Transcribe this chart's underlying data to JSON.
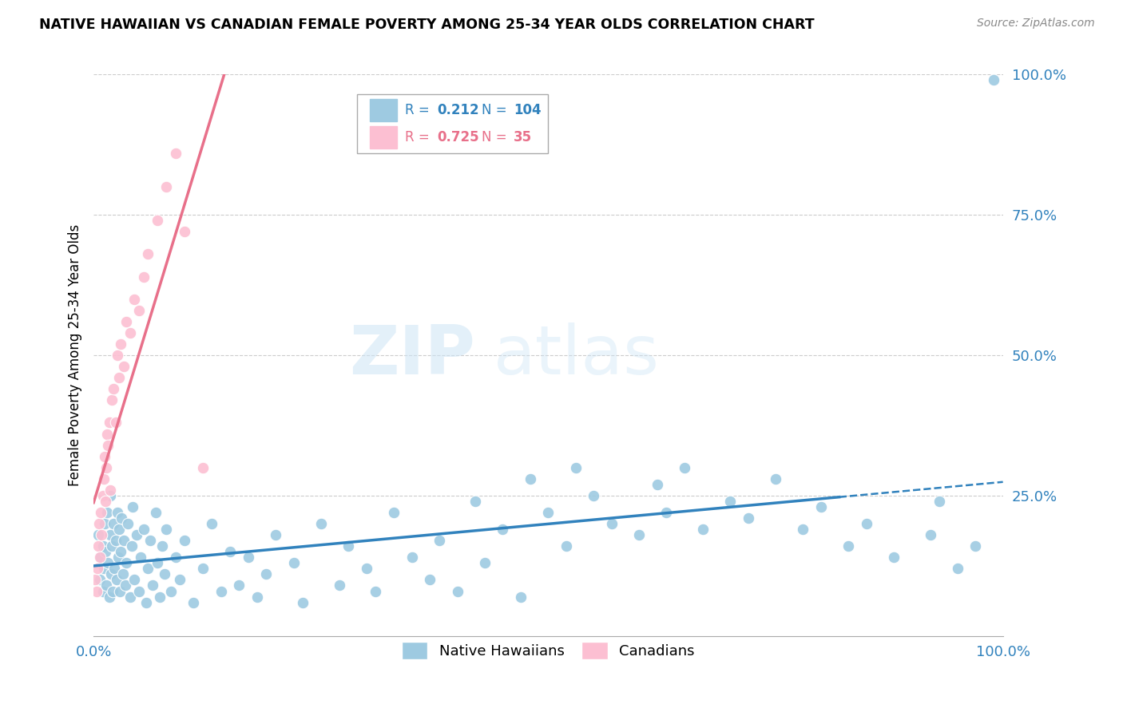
{
  "title": "NATIVE HAWAIIAN VS CANADIAN FEMALE POVERTY AMONG 25-34 YEAR OLDS CORRELATION CHART",
  "source": "Source: ZipAtlas.com",
  "ylabel": "Female Poverty Among 25-34 Year Olds",
  "blue_R": 0.212,
  "blue_N": 104,
  "pink_R": 0.725,
  "pink_N": 35,
  "blue_color": "#9ecae1",
  "pink_color": "#fcbfd2",
  "blue_line_color": "#3182bd",
  "pink_line_color": "#e8708a",
  "text_color_blue": "#3182bd",
  "text_color_pink": "#e8708a",
  "watermark_zip": "ZIP",
  "watermark_atlas": "atlas",
  "legend_label_blue": "Native Hawaiians",
  "legend_label_pink": "Canadians",
  "blue_x": [
    0.005,
    0.007,
    0.008,
    0.01,
    0.01,
    0.011,
    0.012,
    0.013,
    0.014,
    0.015,
    0.016,
    0.017,
    0.018,
    0.018,
    0.019,
    0.02,
    0.021,
    0.022,
    0.023,
    0.024,
    0.025,
    0.026,
    0.027,
    0.028,
    0.029,
    0.03,
    0.031,
    0.032,
    0.033,
    0.035,
    0.036,
    0.038,
    0.04,
    0.042,
    0.043,
    0.045,
    0.047,
    0.05,
    0.052,
    0.055,
    0.058,
    0.06,
    0.062,
    0.065,
    0.068,
    0.07,
    0.073,
    0.075,
    0.078,
    0.08,
    0.085,
    0.09,
    0.095,
    0.1,
    0.11,
    0.12,
    0.13,
    0.14,
    0.15,
    0.16,
    0.17,
    0.18,
    0.19,
    0.2,
    0.22,
    0.23,
    0.25,
    0.27,
    0.28,
    0.3,
    0.31,
    0.33,
    0.35,
    0.37,
    0.38,
    0.4,
    0.42,
    0.43,
    0.45,
    0.47,
    0.48,
    0.5,
    0.52,
    0.53,
    0.55,
    0.57,
    0.6,
    0.62,
    0.63,
    0.65,
    0.67,
    0.7,
    0.72,
    0.75,
    0.78,
    0.8,
    0.83,
    0.85,
    0.88,
    0.92,
    0.93,
    0.95,
    0.97,
    0.99
  ],
  "blue_y": [
    0.18,
    0.1,
    0.14,
    0.08,
    0.16,
    0.12,
    0.2,
    0.15,
    0.09,
    0.22,
    0.13,
    0.07,
    0.18,
    0.25,
    0.11,
    0.16,
    0.08,
    0.2,
    0.12,
    0.17,
    0.1,
    0.22,
    0.14,
    0.19,
    0.08,
    0.15,
    0.21,
    0.11,
    0.17,
    0.09,
    0.13,
    0.2,
    0.07,
    0.16,
    0.23,
    0.1,
    0.18,
    0.08,
    0.14,
    0.19,
    0.06,
    0.12,
    0.17,
    0.09,
    0.22,
    0.13,
    0.07,
    0.16,
    0.11,
    0.19,
    0.08,
    0.14,
    0.1,
    0.17,
    0.06,
    0.12,
    0.2,
    0.08,
    0.15,
    0.09,
    0.14,
    0.07,
    0.11,
    0.18,
    0.13,
    0.06,
    0.2,
    0.09,
    0.16,
    0.12,
    0.08,
    0.22,
    0.14,
    0.1,
    0.17,
    0.08,
    0.24,
    0.13,
    0.19,
    0.07,
    0.28,
    0.22,
    0.16,
    0.3,
    0.25,
    0.2,
    0.18,
    0.27,
    0.22,
    0.3,
    0.19,
    0.24,
    0.21,
    0.28,
    0.19,
    0.23,
    0.16,
    0.2,
    0.14,
    0.18,
    0.24,
    0.12,
    0.16,
    0.99
  ],
  "pink_x": [
    0.002,
    0.003,
    0.004,
    0.005,
    0.006,
    0.007,
    0.008,
    0.009,
    0.01,
    0.011,
    0.012,
    0.013,
    0.014,
    0.015,
    0.016,
    0.017,
    0.018,
    0.02,
    0.022,
    0.024,
    0.026,
    0.028,
    0.03,
    0.033,
    0.036,
    0.04,
    0.045,
    0.05,
    0.055,
    0.06,
    0.07,
    0.08,
    0.09,
    0.1,
    0.12
  ],
  "pink_y": [
    0.1,
    0.08,
    0.12,
    0.16,
    0.2,
    0.14,
    0.22,
    0.18,
    0.25,
    0.28,
    0.32,
    0.24,
    0.3,
    0.36,
    0.34,
    0.38,
    0.26,
    0.42,
    0.44,
    0.38,
    0.5,
    0.46,
    0.52,
    0.48,
    0.56,
    0.54,
    0.6,
    0.58,
    0.64,
    0.68,
    0.74,
    0.8,
    0.86,
    0.72,
    0.3
  ]
}
